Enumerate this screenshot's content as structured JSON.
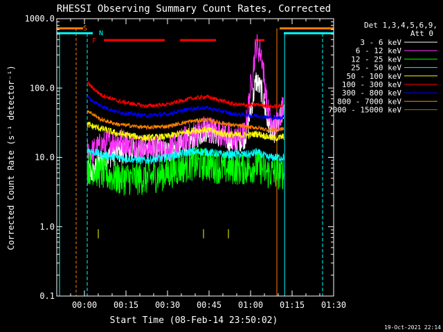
{
  "chart_data": {
    "type": "line",
    "title": "RHESSI Observing Summary Count Rates, Corrected",
    "xlabel": "Start Time (08-Feb-14 23:50:02)",
    "ylabel": "Corrected Count Rate (s⁻¹ detector⁻¹)",
    "ylog": true,
    "ylim": [
      0.1,
      1000
    ],
    "xlim_minutes": [
      -10,
      90
    ],
    "xticks": [
      "00:00",
      "00:15",
      "00:30",
      "00:45",
      "01:00",
      "01:15",
      "01:30"
    ],
    "yticks": [
      "0.1",
      "1.0",
      "10.0",
      "100.0",
      "1000.0"
    ],
    "timestamp": "19-Oct-2021 22:14",
    "legend_header": [
      "Det 1,3,4,5,6,9,",
      "Att 0"
    ],
    "grid": false,
    "legend_position": "right",
    "series": [
      {
        "name": "3 - 6 keV",
        "color": "#ffffff",
        "x": [
          1,
          3,
          6,
          12,
          22,
          30,
          38,
          44,
          50,
          54,
          58,
          60,
          62,
          64,
          66,
          68,
          70,
          72
        ],
        "y": [
          6,
          6,
          9,
          12,
          13,
          12,
          17,
          25,
          20,
          16,
          20,
          45,
          130,
          90,
          35,
          22,
          30,
          50
        ]
      },
      {
        "name": "6 - 12 keV",
        "color": "#ff33ff",
        "x": [
          1,
          3,
          6,
          12,
          22,
          30,
          38,
          44,
          50,
          54,
          58,
          60,
          62,
          64,
          66,
          68,
          70,
          72
        ],
        "y": [
          12,
          12,
          15,
          18,
          14,
          13,
          20,
          27,
          22,
          18,
          22,
          100,
          420,
          300,
          55,
          25,
          35,
          60
        ]
      },
      {
        "name": "12 - 25 keV",
        "color": "#00ff00",
        "x": [
          1,
          3,
          6,
          12,
          22,
          30,
          38,
          44,
          50,
          54,
          58,
          60,
          62,
          64,
          66,
          68,
          70,
          72
        ],
        "y": [
          7,
          7,
          6,
          5,
          5,
          6,
          8,
          8,
          7,
          7,
          7,
          7,
          8,
          7,
          6,
          6,
          6,
          6
        ]
      },
      {
        "name": "25 - 50 keV",
        "color": "#00ffff",
        "x": [
          1,
          3,
          6,
          12,
          22,
          30,
          38,
          44,
          50,
          54,
          58,
          60,
          62,
          64,
          66,
          68,
          70,
          72
        ],
        "y": [
          13,
          12,
          11,
          10,
          9,
          10,
          12,
          12,
          11,
          11,
          11,
          11,
          12,
          11,
          10,
          10,
          10,
          10
        ]
      },
      {
        "name": "50 - 100 keV",
        "color": "#ffff00",
        "x": [
          1,
          3,
          6,
          12,
          22,
          30,
          38,
          44,
          50,
          54,
          58,
          60,
          62,
          64,
          66,
          68,
          70,
          72
        ],
        "y": [
          30,
          28,
          26,
          22,
          19,
          20,
          24,
          25,
          22,
          21,
          21,
          21,
          22,
          21,
          20,
          19,
          19,
          20
        ]
      },
      {
        "name": "100 - 300 keV",
        "color": "#ff0000",
        "x": [
          1,
          3,
          6,
          12,
          22,
          30,
          38,
          44,
          50,
          54,
          58,
          60,
          62,
          64,
          66,
          68,
          70,
          72
        ],
        "y": [
          120,
          100,
          80,
          65,
          55,
          58,
          70,
          75,
          65,
          58,
          57,
          56,
          58,
          57,
          55,
          54,
          55,
          57
        ]
      },
      {
        "name": "300 - 800 keV",
        "color": "#0000ff",
        "x": [
          1,
          3,
          6,
          12,
          22,
          30,
          38,
          44,
          50,
          54,
          58,
          60,
          62,
          64,
          66,
          68,
          70,
          72
        ],
        "y": [
          75,
          65,
          55,
          45,
          40,
          42,
          50,
          52,
          46,
          42,
          41,
          40,
          40,
          39,
          38,
          37,
          37,
          38
        ]
      },
      {
        "name": "800 - 7000 keV",
        "color": "#ff8000",
        "x": [
          1,
          3,
          6,
          12,
          22,
          30,
          38,
          44,
          50,
          54,
          58,
          60,
          62,
          64,
          66,
          68,
          70,
          72
        ],
        "y": [
          48,
          42,
          35,
          30,
          27,
          28,
          33,
          35,
          31,
          29,
          28,
          27,
          27,
          26,
          25,
          25,
          25,
          26
        ]
      },
      {
        "name": "7000 - 15000 keV",
        "color": "#808000",
        "x": [
          5,
          43,
          52
        ],
        "y": [
          0.8,
          0.8,
          0.8
        ]
      }
    ],
    "annotations": {
      "S_label": "S",
      "N_label": "N",
      "F_label": "F",
      "saa_color": "#ff8000",
      "night_color": "#00ffff",
      "flare_color": "#ff0000"
    }
  }
}
